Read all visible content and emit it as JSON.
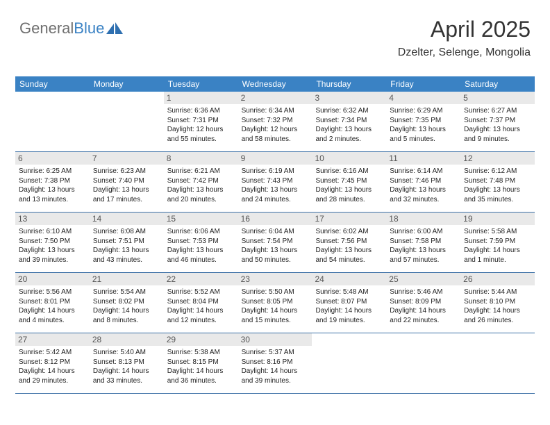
{
  "brand": {
    "part1": "General",
    "part2": "Blue"
  },
  "title": "April 2025",
  "location": "Dzelter, Selenge, Mongolia",
  "colors": {
    "header_bg": "#3a82c4",
    "header_text": "#ffffff",
    "daynum_bg": "#e9e9e9",
    "daynum_text": "#555555",
    "rule": "#3a6fa5",
    "brand_grey": "#6f6f6f",
    "brand_blue": "#3a82c4"
  },
  "day_names": [
    "Sunday",
    "Monday",
    "Tuesday",
    "Wednesday",
    "Thursday",
    "Friday",
    "Saturday"
  ],
  "weeks": [
    [
      {
        "n": "",
        "sr": "",
        "ss": "",
        "dl": ""
      },
      {
        "n": "",
        "sr": "",
        "ss": "",
        "dl": ""
      },
      {
        "n": "1",
        "sr": "6:36 AM",
        "ss": "7:31 PM",
        "dl": "12 hours and 55 minutes."
      },
      {
        "n": "2",
        "sr": "6:34 AM",
        "ss": "7:32 PM",
        "dl": "12 hours and 58 minutes."
      },
      {
        "n": "3",
        "sr": "6:32 AM",
        "ss": "7:34 PM",
        "dl": "13 hours and 2 minutes."
      },
      {
        "n": "4",
        "sr": "6:29 AM",
        "ss": "7:35 PM",
        "dl": "13 hours and 5 minutes."
      },
      {
        "n": "5",
        "sr": "6:27 AM",
        "ss": "7:37 PM",
        "dl": "13 hours and 9 minutes."
      }
    ],
    [
      {
        "n": "6",
        "sr": "6:25 AM",
        "ss": "7:38 PM",
        "dl": "13 hours and 13 minutes."
      },
      {
        "n": "7",
        "sr": "6:23 AM",
        "ss": "7:40 PM",
        "dl": "13 hours and 17 minutes."
      },
      {
        "n": "8",
        "sr": "6:21 AM",
        "ss": "7:42 PM",
        "dl": "13 hours and 20 minutes."
      },
      {
        "n": "9",
        "sr": "6:19 AM",
        "ss": "7:43 PM",
        "dl": "13 hours and 24 minutes."
      },
      {
        "n": "10",
        "sr": "6:16 AM",
        "ss": "7:45 PM",
        "dl": "13 hours and 28 minutes."
      },
      {
        "n": "11",
        "sr": "6:14 AM",
        "ss": "7:46 PM",
        "dl": "13 hours and 32 minutes."
      },
      {
        "n": "12",
        "sr": "6:12 AM",
        "ss": "7:48 PM",
        "dl": "13 hours and 35 minutes."
      }
    ],
    [
      {
        "n": "13",
        "sr": "6:10 AM",
        "ss": "7:50 PM",
        "dl": "13 hours and 39 minutes."
      },
      {
        "n": "14",
        "sr": "6:08 AM",
        "ss": "7:51 PM",
        "dl": "13 hours and 43 minutes."
      },
      {
        "n": "15",
        "sr": "6:06 AM",
        "ss": "7:53 PM",
        "dl": "13 hours and 46 minutes."
      },
      {
        "n": "16",
        "sr": "6:04 AM",
        "ss": "7:54 PM",
        "dl": "13 hours and 50 minutes."
      },
      {
        "n": "17",
        "sr": "6:02 AM",
        "ss": "7:56 PM",
        "dl": "13 hours and 54 minutes."
      },
      {
        "n": "18",
        "sr": "6:00 AM",
        "ss": "7:58 PM",
        "dl": "13 hours and 57 minutes."
      },
      {
        "n": "19",
        "sr": "5:58 AM",
        "ss": "7:59 PM",
        "dl": "14 hours and 1 minute."
      }
    ],
    [
      {
        "n": "20",
        "sr": "5:56 AM",
        "ss": "8:01 PM",
        "dl": "14 hours and 4 minutes."
      },
      {
        "n": "21",
        "sr": "5:54 AM",
        "ss": "8:02 PM",
        "dl": "14 hours and 8 minutes."
      },
      {
        "n": "22",
        "sr": "5:52 AM",
        "ss": "8:04 PM",
        "dl": "14 hours and 12 minutes."
      },
      {
        "n": "23",
        "sr": "5:50 AM",
        "ss": "8:05 PM",
        "dl": "14 hours and 15 minutes."
      },
      {
        "n": "24",
        "sr": "5:48 AM",
        "ss": "8:07 PM",
        "dl": "14 hours and 19 minutes."
      },
      {
        "n": "25",
        "sr": "5:46 AM",
        "ss": "8:09 PM",
        "dl": "14 hours and 22 minutes."
      },
      {
        "n": "26",
        "sr": "5:44 AM",
        "ss": "8:10 PM",
        "dl": "14 hours and 26 minutes."
      }
    ],
    [
      {
        "n": "27",
        "sr": "5:42 AM",
        "ss": "8:12 PM",
        "dl": "14 hours and 29 minutes."
      },
      {
        "n": "28",
        "sr": "5:40 AM",
        "ss": "8:13 PM",
        "dl": "14 hours and 33 minutes."
      },
      {
        "n": "29",
        "sr": "5:38 AM",
        "ss": "8:15 PM",
        "dl": "14 hours and 36 minutes."
      },
      {
        "n": "30",
        "sr": "5:37 AM",
        "ss": "8:16 PM",
        "dl": "14 hours and 39 minutes."
      },
      {
        "n": "",
        "sr": "",
        "ss": "",
        "dl": ""
      },
      {
        "n": "",
        "sr": "",
        "ss": "",
        "dl": ""
      },
      {
        "n": "",
        "sr": "",
        "ss": "",
        "dl": ""
      }
    ]
  ]
}
